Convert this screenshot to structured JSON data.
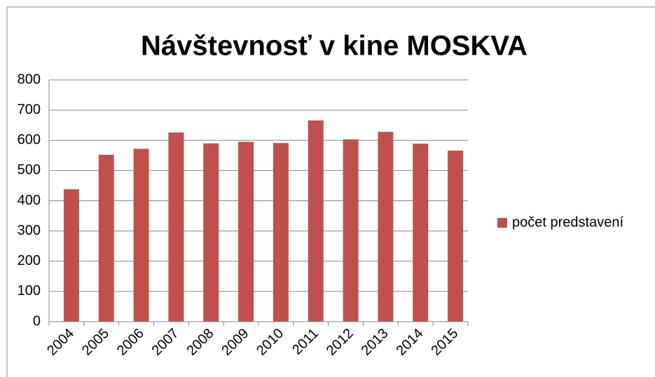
{
  "chart_data": {
    "type": "bar",
    "title": "Návštevnosť v kine MOSKVA",
    "categories": [
      "2004",
      "2005",
      "2006",
      "2007",
      "2008",
      "2009",
      "2010",
      "2011",
      "2012",
      "2013",
      "2014",
      "2015"
    ],
    "series": [
      {
        "name": "počet predstavení",
        "color": "#c0504d",
        "values": [
          438,
          552,
          572,
          626,
          590,
          595,
          591,
          666,
          603,
          628,
          589,
          566
        ]
      }
    ],
    "ylim": [
      0,
      800
    ],
    "yticks": [
      0,
      100,
      200,
      300,
      400,
      500,
      600,
      700,
      800
    ],
    "grid": true,
    "legend": "right"
  }
}
